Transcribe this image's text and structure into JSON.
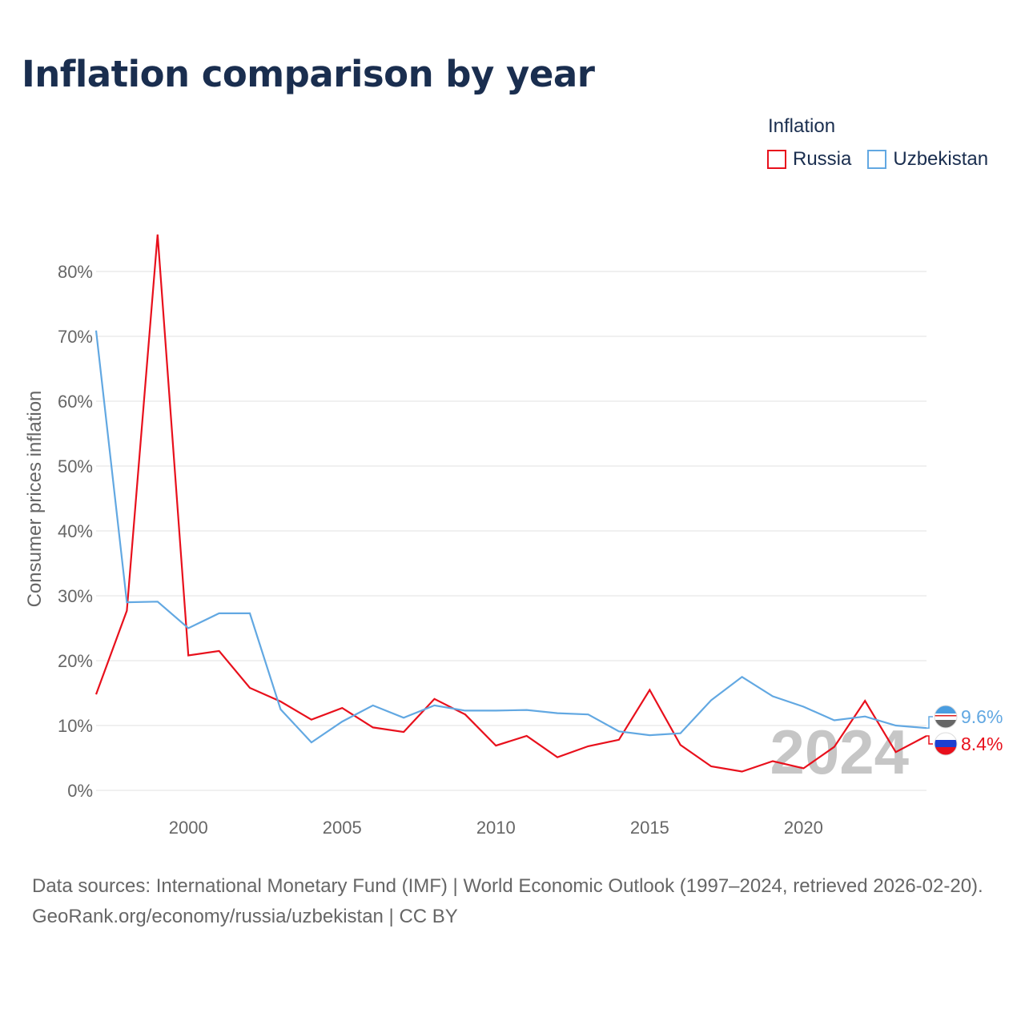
{
  "title": "Inflation comparison by year",
  "legend": {
    "title": "Inflation",
    "items": [
      {
        "name": "Russia",
        "color": "#e8101c"
      },
      {
        "name": "Uzbekistan",
        "color": "#62a8e2"
      }
    ]
  },
  "chart_data": {
    "type": "line",
    "title": "Inflation comparison by year",
    "xlabel": "",
    "ylabel": "Consumer prices inflation",
    "x": [
      1997,
      1998,
      1999,
      2000,
      2001,
      2002,
      2003,
      2004,
      2005,
      2006,
      2007,
      2008,
      2009,
      2010,
      2011,
      2012,
      2013,
      2014,
      2015,
      2016,
      2017,
      2018,
      2019,
      2020,
      2021,
      2022,
      2023,
      2024
    ],
    "xlim": [
      1997,
      2024
    ],
    "ylim": [
      0,
      85
    ],
    "x_ticks": [
      2000,
      2005,
      2010,
      2015,
      2020
    ],
    "y_ticks": [
      0,
      10,
      20,
      30,
      40,
      50,
      60,
      70,
      80
    ],
    "y_tick_labels": [
      "0%",
      "10%",
      "20%",
      "30%",
      "40%",
      "50%",
      "60%",
      "70%",
      "80%"
    ],
    "grid": true,
    "series": [
      {
        "name": "Russia",
        "color": "#e8101c",
        "values": [
          14.8,
          27.7,
          85.7,
          20.8,
          21.5,
          15.8,
          13.7,
          10.9,
          12.7,
          9.7,
          9.0,
          14.1,
          11.7,
          6.9,
          8.4,
          5.1,
          6.8,
          7.8,
          15.5,
          7.0,
          3.7,
          2.9,
          4.5,
          3.4,
          6.7,
          13.8,
          5.9,
          8.4
        ],
        "end_label": "8.4%"
      },
      {
        "name": "Uzbekistan",
        "color": "#62a8e2",
        "values": [
          70.9,
          29.0,
          29.1,
          25.0,
          27.3,
          27.3,
          12.5,
          7.4,
          10.6,
          13.1,
          11.2,
          13.1,
          12.3,
          12.3,
          12.4,
          11.9,
          11.7,
          9.1,
          8.5,
          8.8,
          13.9,
          17.5,
          14.5,
          12.9,
          10.8,
          11.4,
          10.0,
          9.6
        ],
        "end_label": "9.6%"
      }
    ],
    "annotation": "2024"
  },
  "source": {
    "line1": "Data sources: International Monetary Fund (IMF) | World Economic Outlook (1997–2024, retrieved 2026-02-20).",
    "line2": "GeoRank.org/economy/russia/uzbekistan | CC BY"
  }
}
